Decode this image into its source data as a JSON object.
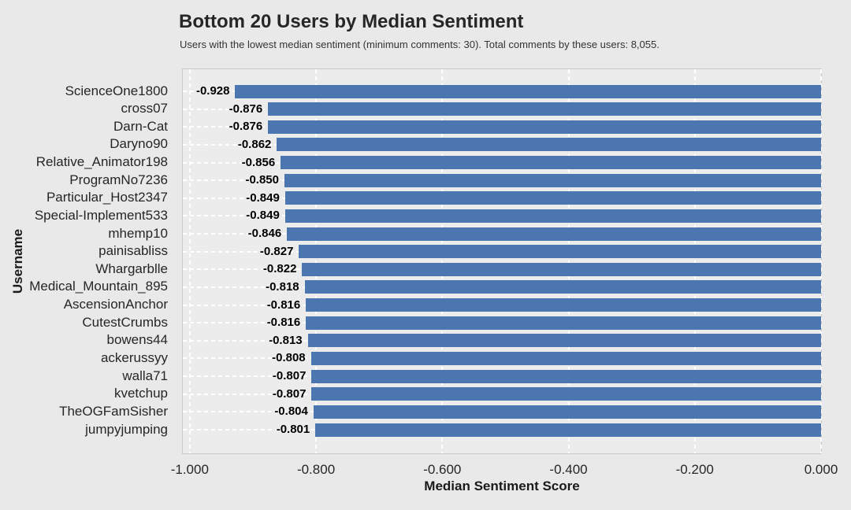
{
  "chart_data": {
    "type": "bar",
    "orientation": "horizontal",
    "title": "Bottom 20 Users by Median Sentiment",
    "subtitle": "Users with the lowest median sentiment (minimum comments: 30). Total comments by these users: 8,055.",
    "xlabel": "Median Sentiment Score",
    "ylabel": "Username",
    "categories": [
      "ScienceOne1800",
      "cross07",
      "Darn-Cat",
      "Daryno90",
      "Relative_Animator198",
      "ProgramNo7236",
      "Particular_Host2347",
      "Special-Implement533",
      "mhemp10",
      "painisabliss",
      "Whargarblle",
      "Medical_Mountain_895",
      "AscensionAnchor",
      "CutestCrumbs",
      "bowens44",
      "ackerussyy",
      "walla71",
      "kvetchup",
      "TheOGFamSisher",
      "jumpyjumping"
    ],
    "values": [
      -0.928,
      -0.876,
      -0.876,
      -0.862,
      -0.856,
      -0.85,
      -0.849,
      -0.849,
      -0.846,
      -0.827,
      -0.822,
      -0.818,
      -0.816,
      -0.816,
      -0.813,
      -0.808,
      -0.807,
      -0.807,
      -0.804,
      -0.801
    ],
    "value_labels": [
      "-0.928",
      "-0.876",
      "-0.876",
      "-0.862",
      "-0.856",
      "-0.850",
      "-0.849",
      "-0.849",
      "-0.846",
      "-0.827",
      "-0.822",
      "-0.818",
      "-0.816",
      "-0.816",
      "-0.813",
      "-0.808",
      "-0.807",
      "-0.807",
      "-0.804",
      "-0.801"
    ],
    "xlim": [
      -1.011,
      0
    ],
    "xticks": [
      -1.0,
      -0.8,
      -0.6,
      -0.4,
      -0.2,
      0
    ],
    "xtick_labels": [
      "-1.000",
      "-0.800",
      "-0.600",
      "-0.400",
      "-0.200",
      "0.000"
    ],
    "grid": true,
    "legend": false,
    "colors": {
      "bar": "#4C76B0",
      "figure_background": "#E9E9E9",
      "plot_background": "#ECECEC",
      "plot_border": "#CACACA",
      "grid": "#FFFFFF",
      "value_label_text": "#000000",
      "tick_text": "#262626"
    }
  }
}
